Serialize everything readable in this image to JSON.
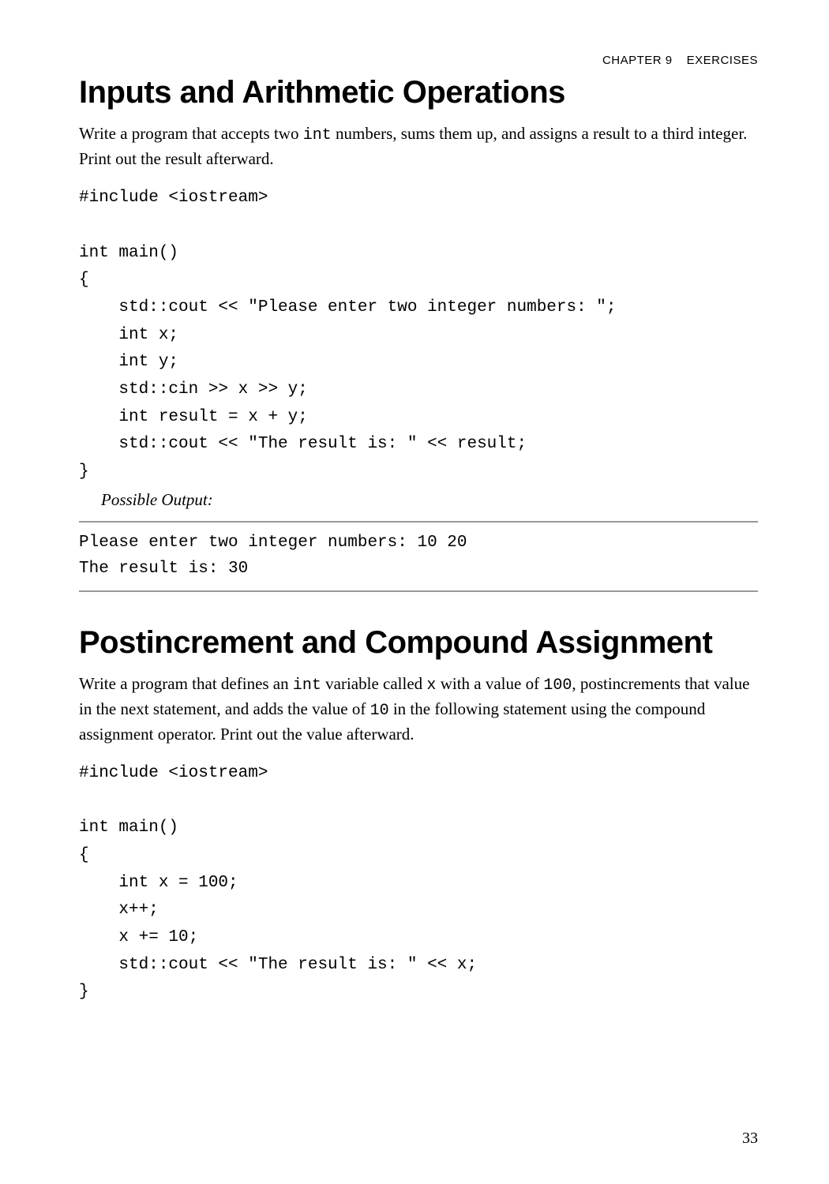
{
  "header": {
    "chapter": "CHAPTER 9",
    "section": "EXERCISES"
  },
  "section1": {
    "title": "Inputs and Arithmetic Operations",
    "intro_pre": "Write a program that accepts two ",
    "intro_mono1": "int",
    "intro_post": " numbers, sums them up, and assigns a result to a third integer. Print out the result afterward.",
    "code": "#include <iostream>\n\nint main()\n{\n    std::cout << \"Please enter two integer numbers: \";\n    int x;\n    int y;\n    std::cin >> x >> y;\n    int result = x + y;\n    std::cout << \"The result is: \" << result;\n}",
    "possible_output_label": "Possible Output:",
    "output": "Please enter two integer numbers: 10 20\nThe result is: 30"
  },
  "section2": {
    "title": "Postincrement and Compound Assignment",
    "intro_p1": "Write a program that defines an ",
    "intro_m1": "int",
    "intro_p2": " variable called ",
    "intro_m2": "x",
    "intro_p3": " with a value of ",
    "intro_m3": "100",
    "intro_p4": ", postincrements that value in the next statement, and adds the value of ",
    "intro_m4": "10",
    "intro_p5": " in the following statement using the compound assignment operator. Print out the value afterward.",
    "code": "#include <iostream>\n\nint main()\n{\n    int x = 100;\n    x++;\n    x += 10;\n    std::cout << \"The result is: \" << x;\n}"
  },
  "page_number": "33"
}
